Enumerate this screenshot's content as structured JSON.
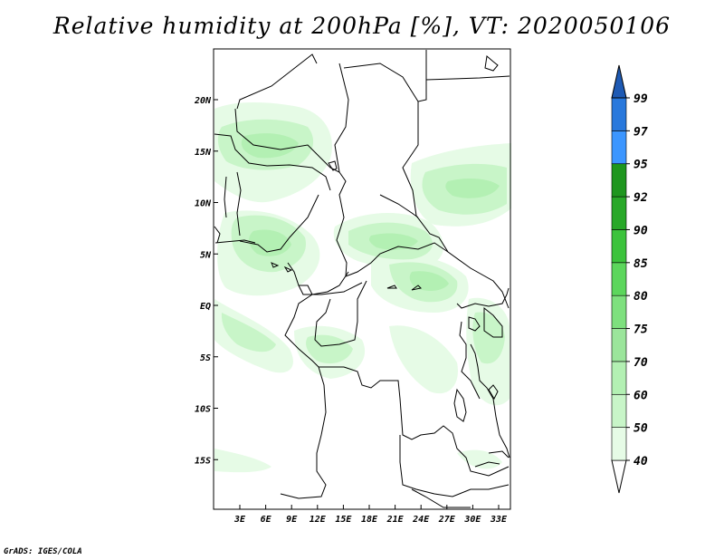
{
  "title": "Relative humidity at 200hPa [%], VT: 2020050106",
  "credit": "GrADS: IGES/COLA",
  "lat_labels": [
    "20N",
    "15N",
    "10N",
    "5N",
    "EQ",
    "5S",
    "10S",
    "15S"
  ],
  "lon_labels": [
    "3E",
    "6E",
    "9E",
    "12E",
    "15E",
    "18E",
    "21E",
    "24E",
    "27E",
    "30E",
    "33E"
  ],
  "colorbar": {
    "levels": [
      "40",
      "50",
      "60",
      "70",
      "75",
      "80",
      "85",
      "90",
      "92",
      "95",
      "97",
      "99"
    ],
    "colors": [
      "#ffffff",
      "#e6fbe6",
      "#c8f5c8",
      "#b3f0b3",
      "#9be59b",
      "#7ee07e",
      "#5cd65c",
      "#3cc33c",
      "#28a828",
      "#1e961e",
      "#3c96ff",
      "#2878dc",
      "#1e5ab4"
    ]
  },
  "field_colors": {
    "light": "#e6fbe6",
    "mid": "#c8f5c8",
    "high": "#b3f0b3"
  }
}
